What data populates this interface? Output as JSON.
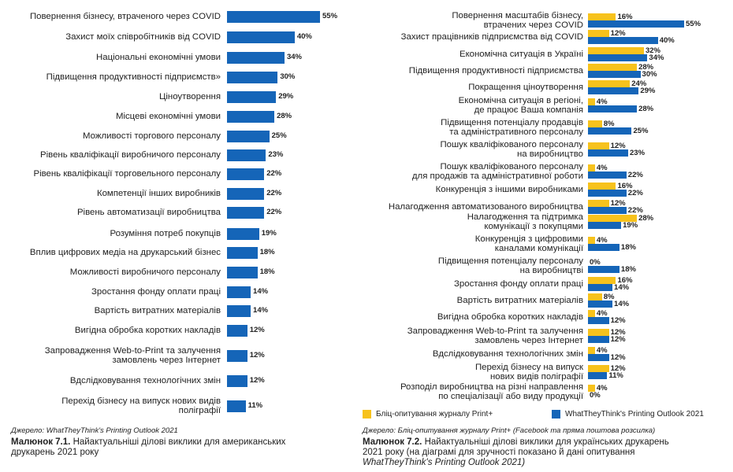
{
  "colors": {
    "blue": "#1565b8",
    "yellow": "#f7c21c"
  },
  "chart_data": [
    {
      "type": "bar",
      "orientation": "horizontal",
      "categories": [
        [
          "Повернення бізнесу, втраченого через COVID"
        ],
        [
          "Захист моїх співробітників від COVID"
        ],
        [
          "Національні економічні умови"
        ],
        [
          "Підвищення продуктивності підприємств»"
        ],
        [
          "Ціноутворення"
        ],
        [
          "Місцеві економічні умови"
        ],
        [
          "Можливості торгового персоналу"
        ],
        [
          "Рівень кваліфікації виробничого персоналу"
        ],
        [
          "Рівень кваліфікації торговельного персоналу"
        ],
        [
          "Компетенції інших виробників"
        ],
        [
          "Рівень автоматизації виробництва"
        ],
        [
          "Розуміння потреб покупців"
        ],
        [
          "Вплив цифрових медіа на друкарський бізнес"
        ],
        [
          "Можливості виробничого персоналу"
        ],
        [
          "Зростання фонду оплати праці"
        ],
        [
          "Вартість витратних матеріалів"
        ],
        [
          "Вигідна обробка коротких накладів"
        ],
        [
          "Запровадження Web-to-Print та залучення",
          "замовлень через Інтернет"
        ],
        [
          "Вдслідковування технологічних змін"
        ],
        [
          "Перехід бізнесу на випуск нових видів",
          "поліграфії"
        ]
      ],
      "series": [
        {
          "values": [
            55,
            40,
            34,
            30,
            29,
            28,
            25,
            23,
            22,
            22,
            22,
            19,
            18,
            18,
            14,
            14,
            12,
            12,
            12,
            11
          ],
          "labels": [
            "55%",
            "40%",
            "34%",
            "30%",
            "29%",
            "28%",
            "25%",
            "23%",
            "22%",
            "22%",
            "22%",
            "19%",
            "18%",
            "18%",
            "14%",
            "14%",
            "12%",
            "12%",
            "12%",
            "11%"
          ]
        }
      ],
      "xlim": [
        0,
        55
      ],
      "source": "Джерело: WhatTheyThink's Printing Outlook 2021",
      "caption": {
        "number": "Малюнок 7.1.",
        "line1": "Найактуальніші ділові виклики для американських",
        "line2": "друкарень 2021 року"
      }
    },
    {
      "type": "bar",
      "orientation": "horizontal",
      "categories": [
        [
          "Повернення масштабів бізнесу,",
          "втрачених через COVID"
        ],
        [
          "Захист працівників підприємства від COVID"
        ],
        [
          "Економічна ситуація в Україні"
        ],
        [
          "Підвищення продуктивності підприємства"
        ],
        [
          "Покращення ціноутворення"
        ],
        [
          "Економічна ситуація в регіоні,",
          "де працює Ваша компанія"
        ],
        [
          "Підвищення потенціалу продавців",
          "та адміністративного персоналу"
        ],
        [
          "Пошук кваліфікованого персоналу",
          "на виробництво"
        ],
        [
          "Пошук кваліфікованого персоналу",
          "для продажів та адміністративної роботи"
        ],
        [
          "Конкуренція з іншими виробниками"
        ],
        [
          "Налагодження автоматизованого виробництва"
        ],
        [
          "Налагодження та підтримка",
          "комунікації з покупцями"
        ],
        [
          "Конкуренція з цифровими",
          "каналами комунікації"
        ],
        [
          "Підвищення потенціалу персоналу",
          "на виробництві"
        ],
        [
          "Зростання фонду оплати праці"
        ],
        [
          "Вартість витратних матеріалів"
        ],
        [
          "Вигідна обробка коротких накладів"
        ],
        [
          "Запровадження Web-to-Print та залучення",
          "замовлень через Інтернет"
        ],
        [
          "Вдслідковування технологічних змін"
        ],
        [
          "Перехід бізнесу на випуск",
          "нових видів поліграфії"
        ],
        [
          "Розподіл виробництва на різні направлення",
          "по спеціалізації або виду продукції"
        ]
      ],
      "series": [
        {
          "name": "Бліц-опитування журналу Print+",
          "color": "yellow",
          "values": [
            16,
            12,
            32,
            28,
            24,
            4,
            8,
            12,
            4,
            16,
            12,
            28,
            4,
            0,
            16,
            8,
            4,
            12,
            4,
            12,
            4
          ],
          "labels": [
            "16%",
            "12%",
            "32%",
            "28%",
            "24%",
            "4%",
            "8%",
            "12%",
            "4%",
            "16%",
            "12%",
            "28%",
            "4%",
            "0%",
            "16%",
            "8%",
            "4%",
            "12%",
            "4%",
            "12%",
            "4%"
          ]
        },
        {
          "name": "WhatTheyThink's Printing Outlook 2021",
          "color": "blue",
          "values": [
            55,
            40,
            34,
            30,
            29,
            28,
            25,
            23,
            22,
            22,
            22,
            19,
            18,
            18,
            14,
            14,
            12,
            12,
            12,
            11,
            0
          ],
          "labels": [
            "55%",
            "40%",
            "34%",
            "30%",
            "29%",
            "28%",
            "25%",
            "23%",
            "22%",
            "22%",
            "22%",
            "19%",
            "18%",
            "18%",
            "14%",
            "14%",
            "12%",
            "12%",
            "12%",
            "11%",
            "0%"
          ]
        }
      ],
      "xlim": [
        0,
        55
      ],
      "legend": "bottom",
      "source": "Джерело: Бліц-опитування журналу Print+ (Facebook та пряма поштова розсилка)",
      "caption": {
        "number": "Малюнок 7.2.",
        "line1": "Найактуальніші ділові виклики для українських друкарень",
        "line2": "2021 року (на діаграмі для зручності показано й дані опитування",
        "line3": "WhatTheyThink's Printing Outlook 2021)"
      }
    }
  ]
}
